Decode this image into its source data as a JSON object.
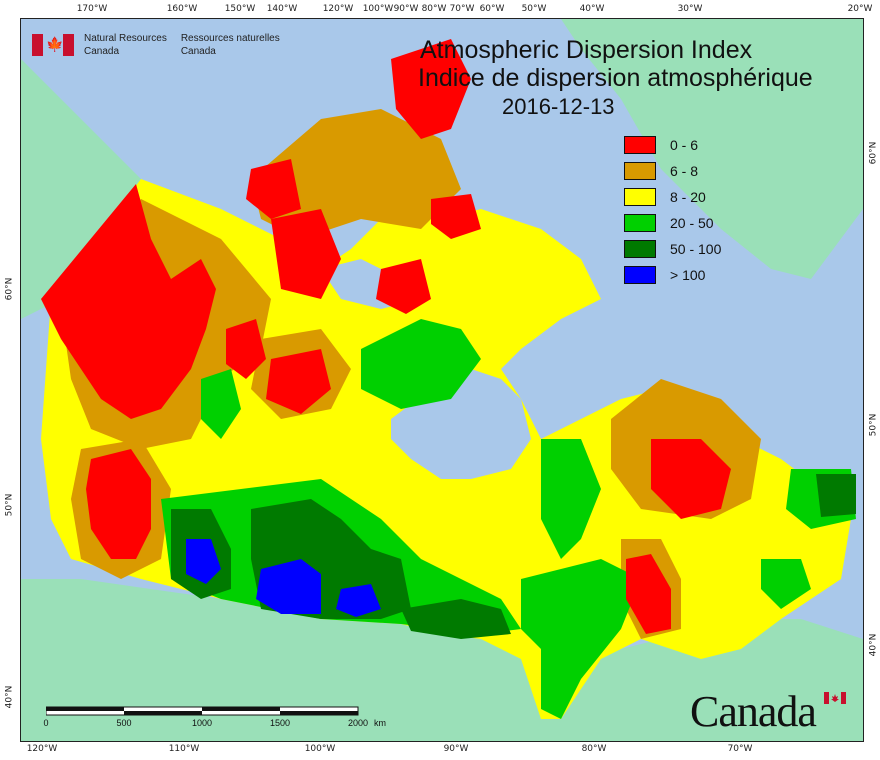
{
  "map": {
    "title_en": "Atmospheric Dispersion Index",
    "title_fr": "Indice de dispersion atmosphérique",
    "date": "2016-12-13",
    "agency_en_line1": "Natural Resources",
    "agency_en_line2": "Canada",
    "agency_fr_line1": "Ressources naturelles",
    "agency_fr_line2": "Canada",
    "wordmark": "Canada",
    "colors": {
      "ocean": "#a9c8ea",
      "land_outside": "#9ae0b8",
      "class_0_6": "#ff0000",
      "class_6_8": "#d99a00",
      "class_8_20": "#ffff00",
      "class_20_50": "#00d000",
      "class_50_100": "#007a00",
      "class_gt100": "#0000ff"
    }
  },
  "legend": [
    {
      "label": "0 - 6",
      "color": "#ff0000"
    },
    {
      "label": "6 - 8",
      "color": "#d99a00"
    },
    {
      "label": "8 - 20",
      "color": "#ffff00"
    },
    {
      "label": "20 - 50",
      "color": "#00d000"
    },
    {
      "label": "50 - 100",
      "color": "#007a00"
    },
    {
      "label": "> 100",
      "color": "#0000ff"
    }
  ],
  "graticule": {
    "top_labels": [
      "170°W",
      "160°W",
      "150°W",
      "140°W",
      "120°W",
      "100°W",
      "90°W",
      "80°W",
      "70°W",
      "60°W",
      "50°W",
      "40°W",
      "30°W",
      "20°W"
    ],
    "bottom_labels": [
      "120°W",
      "110°W",
      "100°W",
      "90°W",
      "80°W",
      "70°W"
    ],
    "left_labels": [
      "60°N",
      "50°N",
      "40°N"
    ],
    "right_labels": [
      "60°N",
      "50°N",
      "40°N"
    ]
  },
  "scale": {
    "labels": [
      "0",
      "500",
      "1000",
      "1500",
      "2000"
    ],
    "unit": "km"
  }
}
